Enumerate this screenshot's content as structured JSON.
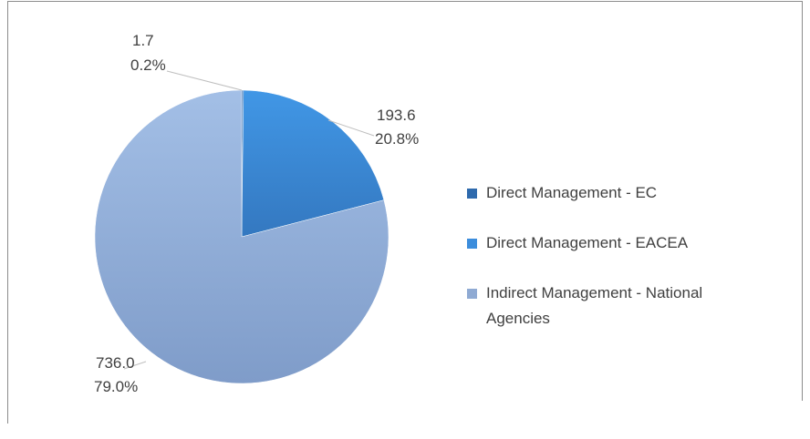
{
  "chart_data": {
    "type": "pie",
    "categories": [
      "Direct Management - EC",
      "Direct Management - EACEA",
      "Indirect Management - National Agencies"
    ],
    "values": [
      1.7,
      193.6,
      736.0
    ],
    "value_labels": [
      "1.7",
      "193.6",
      "736.0"
    ],
    "percentages": [
      0.2,
      20.8,
      79.0
    ],
    "percentage_labels": [
      "0.2%",
      "20.8%",
      "79.0%"
    ],
    "colors": [
      "#2e6aad",
      "#3c8ddc",
      "#8faad3"
    ],
    "legend": "right"
  }
}
